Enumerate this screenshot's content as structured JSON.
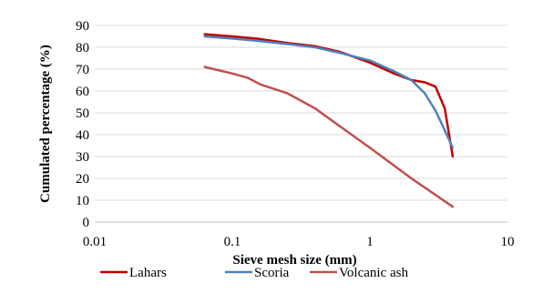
{
  "chart_data": {
    "type": "line",
    "title": "",
    "xlabel": "Sieve mesh size (mm)",
    "ylabel": "Cumulated percentage (%)",
    "x_scale": "log",
    "xlim": [
      0.01,
      10
    ],
    "ylim": [
      0,
      90
    ],
    "x_ticks": [
      "0.01",
      "0.1",
      "1",
      "10"
    ],
    "y_ticks": [
      "0",
      "10",
      "20",
      "30",
      "40",
      "50",
      "60",
      "70",
      "80",
      "90"
    ],
    "grid": "horizontal",
    "legend_position": "bottom",
    "series": [
      {
        "name": "Lahars",
        "color": "#c00000",
        "points": [
          [
            0.063,
            86
          ],
          [
            0.1,
            85
          ],
          [
            0.15,
            84
          ],
          [
            0.25,
            82
          ],
          [
            0.4,
            80.5
          ],
          [
            0.6,
            78
          ],
          [
            1,
            73
          ],
          [
            1.5,
            68
          ],
          [
            2,
            65
          ],
          [
            2.5,
            64
          ],
          [
            3,
            62
          ],
          [
            3.5,
            52
          ],
          [
            4,
            30
          ]
        ]
      },
      {
        "name": "Scoria",
        "color": "#4f81bd",
        "points": [
          [
            0.063,
            85
          ],
          [
            0.1,
            84
          ],
          [
            0.15,
            83
          ],
          [
            0.25,
            81.5
          ],
          [
            0.4,
            80
          ],
          [
            0.6,
            77.5
          ],
          [
            1,
            74
          ],
          [
            1.5,
            69
          ],
          [
            2,
            65
          ],
          [
            2.5,
            59
          ],
          [
            3,
            51
          ],
          [
            3.5,
            42
          ],
          [
            4,
            34
          ]
        ]
      },
      {
        "name": "Volcanic ash",
        "color": "#c0504d",
        "points": [
          [
            0.063,
            71
          ],
          [
            0.1,
            68
          ],
          [
            0.13,
            66
          ],
          [
            0.16,
            63
          ],
          [
            0.25,
            59
          ],
          [
            0.4,
            52
          ],
          [
            0.6,
            44
          ],
          [
            1,
            34
          ],
          [
            2,
            20
          ],
          [
            4,
            7
          ]
        ]
      }
    ]
  }
}
